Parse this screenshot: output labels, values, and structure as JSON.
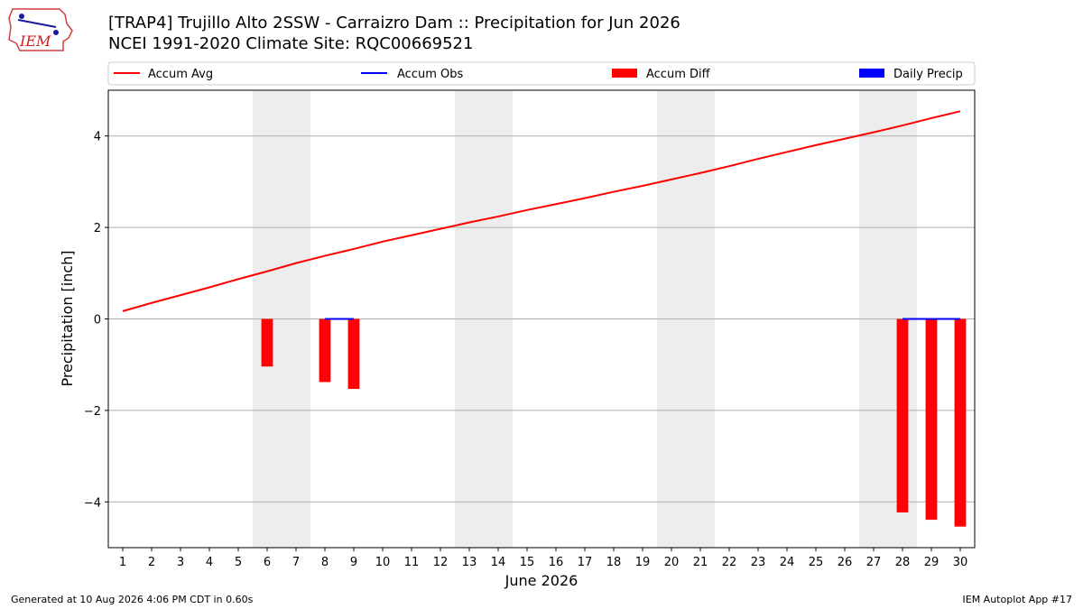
{
  "header": {
    "logo_text": "IEM",
    "title_line1": "[TRAP4] Trujillo Alto 2SSW - Carraizro Dam :: Precipitation for Jun 2026",
    "title_line2": "NCEI 1991-2020 Climate Site: RQC00669521"
  },
  "footer": {
    "generated": "Generated at 10 Aug 2026 4:06 PM CDT in 0.60s",
    "app": "IEM Autoplot App #17"
  },
  "colors": {
    "avg": "#ff0000",
    "obs": "#0000ff",
    "diff": "#ff0000",
    "daily": "#0000ff",
    "weekend_shade": "#ededed",
    "grid": "#b0b0b0"
  },
  "chart_data": {
    "type": "bar",
    "title": "[TRAP4] Trujillo Alto 2SSW - Carraizro Dam :: Precipitation for Jun 2026",
    "subtitle": "NCEI 1991-2020 Climate Site: RQC00669521",
    "xlabel": "June 2026",
    "ylabel": "Precipitation [inch]",
    "ylim": [
      -5.0,
      5.0
    ],
    "xlim": [
      0.5,
      30.5
    ],
    "yticks": [
      -4,
      -2,
      0,
      2,
      4
    ],
    "ytick_labels": [
      "−4",
      "−2",
      "0",
      "2",
      "4"
    ],
    "xticks": [
      1,
      2,
      3,
      4,
      5,
      6,
      7,
      8,
      9,
      10,
      11,
      12,
      13,
      14,
      15,
      16,
      17,
      18,
      19,
      20,
      21,
      22,
      23,
      24,
      25,
      26,
      27,
      28,
      29,
      30
    ],
    "grid": "horizontal",
    "legend_placement": "top",
    "legend": [
      "Accum Avg",
      "Accum Obs",
      "Accum Diff",
      "Daily Precip"
    ],
    "weekend_shading": [
      [
        6,
        7
      ],
      [
        13,
        14
      ],
      [
        20,
        21
      ],
      [
        27,
        28
      ]
    ],
    "series": [
      {
        "name": "Accum Avg",
        "kind": "line",
        "x": [
          1,
          2,
          3,
          4,
          5,
          6,
          7,
          8,
          9,
          10,
          11,
          12,
          13,
          14,
          15,
          16,
          17,
          18,
          19,
          20,
          21,
          22,
          23,
          24,
          25,
          26,
          27,
          28,
          29,
          30
        ],
        "values": [
          0.17,
          0.35,
          0.52,
          0.69,
          0.87,
          1.04,
          1.22,
          1.38,
          1.53,
          1.69,
          1.83,
          1.97,
          2.11,
          2.24,
          2.38,
          2.51,
          2.64,
          2.78,
          2.91,
          3.05,
          3.19,
          3.34,
          3.5,
          3.65,
          3.8,
          3.94,
          4.08,
          4.23,
          4.39,
          4.54
        ]
      },
      {
        "name": "Accum Obs",
        "kind": "line",
        "segments": [
          {
            "x": [
              8,
              9
            ],
            "values": [
              0.0,
              0.0
            ]
          },
          {
            "x": [
              28,
              29,
              30
            ],
            "values": [
              0.0,
              0.0,
              0.0
            ]
          }
        ]
      },
      {
        "name": "Accum Diff",
        "kind": "bar",
        "x": [
          6,
          8,
          9,
          28,
          29,
          30
        ],
        "values": [
          -1.04,
          -1.38,
          -1.53,
          -4.23,
          -4.39,
          -4.54
        ]
      },
      {
        "name": "Daily Precip",
        "kind": "bar",
        "x": [],
        "values": []
      }
    ]
  }
}
